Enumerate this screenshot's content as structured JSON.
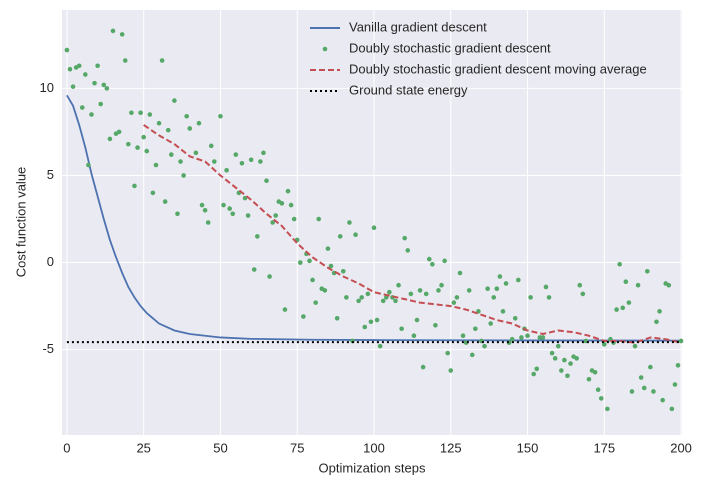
{
  "chart_data": {
    "type": "line",
    "xlabel": "Optimization steps",
    "ylabel": "Cost function value",
    "xlim": [
      -1.6,
      200.3
    ],
    "ylim": [
      -9.9,
      14.5
    ],
    "xticks": [
      0,
      25,
      50,
      75,
      100,
      125,
      150,
      175,
      200
    ],
    "yticks": [
      -5,
      0,
      5,
      10
    ],
    "grid": true,
    "legend": "upper right",
    "series": [
      {
        "name": "Vanilla gradient descent",
        "color": "#4c72b0",
        "style": "solid",
        "kind": "line",
        "x": [
          0,
          2,
          4,
          6,
          8,
          10,
          12,
          14,
          16,
          18,
          20,
          22,
          24,
          26,
          28,
          30,
          35,
          40,
          50,
          60,
          80,
          100,
          150,
          200
        ],
        "values": [
          9.6,
          9.0,
          7.9,
          6.6,
          5.1,
          3.8,
          2.5,
          1.3,
          0.3,
          -0.6,
          -1.4,
          -2.0,
          -2.5,
          -2.9,
          -3.2,
          -3.5,
          -3.9,
          -4.1,
          -4.3,
          -4.38,
          -4.43,
          -4.45,
          -4.47,
          -4.48
        ]
      },
      {
        "name": "Doubly stochastic gradient descent",
        "color": "#55a868",
        "kind": "scatter",
        "x": [
          0,
          1,
          2,
          3,
          4,
          5,
          6,
          7,
          8,
          9,
          10,
          11,
          12,
          13,
          14,
          15,
          16,
          17,
          18,
          19,
          20,
          21,
          22,
          23,
          24,
          25,
          26,
          27,
          28,
          29,
          30,
          31,
          32,
          33,
          34,
          35,
          36,
          37,
          38,
          39,
          40,
          42,
          43,
          44,
          45,
          46,
          47,
          48,
          50,
          51,
          52,
          53,
          54,
          55,
          56,
          57,
          58,
          59,
          60,
          61,
          62,
          63,
          64,
          65,
          66,
          67,
          68,
          69,
          70,
          71,
          72,
          73,
          74,
          75,
          76,
          77,
          78,
          79,
          80,
          81,
          82,
          83,
          84,
          85,
          86,
          87,
          88,
          89,
          90,
          91,
          92,
          93,
          94,
          95,
          96,
          97,
          98,
          99,
          100,
          101,
          102,
          103,
          104,
          105,
          106,
          107,
          108,
          109,
          110,
          111,
          112,
          113,
          114,
          115,
          116,
          117,
          118,
          119,
          120,
          121,
          122,
          123,
          124,
          125,
          126,
          127,
          128,
          129,
          130,
          131,
          132,
          133,
          134,
          135,
          136,
          137,
          138,
          139,
          140,
          141,
          142,
          143,
          144,
          145,
          146,
          147,
          148,
          149,
          150,
          151,
          152,
          153,
          154,
          155,
          156,
          157,
          158,
          159,
          160,
          161,
          162,
          163,
          164,
          165,
          166,
          167,
          168,
          169,
          170,
          171,
          172,
          173,
          174,
          175,
          176,
          177,
          178,
          179,
          180,
          181,
          182,
          183,
          184,
          185,
          186,
          187,
          188,
          189,
          190,
          191,
          192,
          193,
          194,
          195,
          196,
          197,
          198,
          199,
          200
        ],
        "values": [
          12.2,
          11.1,
          10.1,
          11.2,
          11.3,
          8.9,
          10.8,
          5.6,
          8.5,
          10.3,
          11.3,
          9.1,
          10.2,
          10.0,
          7.1,
          13.3,
          7.4,
          7.5,
          13.1,
          11.6,
          6.8,
          8.6,
          4.4,
          6.6,
          8.6,
          7.2,
          6.4,
          8.5,
          4.0,
          5.6,
          8.0,
          11.6,
          3.5,
          7.6,
          6.2,
          9.3,
          2.8,
          5.8,
          5.0,
          8.4,
          7.7,
          6.3,
          8.0,
          3.3,
          3.0,
          2.3,
          6.7,
          5.8,
          8.4,
          3.3,
          5.3,
          3.1,
          2.8,
          6.2,
          4.0,
          5.7,
          3.7,
          2.7,
          5.9,
          -0.4,
          1.5,
          5.8,
          6.3,
          4.7,
          -0.8,
          2.3,
          2.7,
          3.5,
          3.4,
          -2.7,
          4.1,
          3.3,
          2.5,
          1.3,
          0.0,
          -3.1,
          0.5,
          0.1,
          -1.0,
          -2.3,
          2.5,
          -1.5,
          -1.6,
          0.8,
          -0.2,
          -0.6,
          -3.2,
          1.5,
          -0.5,
          -2.0,
          2.3,
          -4.5,
          1.6,
          -2.2,
          -2.0,
          -3.7,
          -1.8,
          -3.4,
          2.0,
          -3.3,
          -4.8,
          -2.2,
          -2.0,
          -1.7,
          -2.0,
          -2.2,
          -1.3,
          -3.8,
          1.4,
          0.7,
          -1.8,
          -4.2,
          -3.3,
          -1.6,
          -6.0,
          -1.8,
          0.2,
          -0.1,
          -3.6,
          -1.6,
          -1.3,
          0.1,
          -5.2,
          -6.2,
          -2.3,
          -2.0,
          -0.6,
          -4.2,
          -4.6,
          -1.6,
          -5.3,
          -3.8,
          -2.8,
          -4.5,
          -4.8,
          -1.5,
          -3.5,
          -2.0,
          -1.5,
          -0.8,
          -2.8,
          -1.2,
          -4.6,
          -4.4,
          -3.2,
          -1.0,
          -4.3,
          -3.8,
          -4.2,
          -2.0,
          -6.4,
          -6.1,
          -4.3,
          -4.3,
          -1.4,
          -2.0,
          -5.2,
          -5.5,
          -4.8,
          -6.2,
          -5.6,
          -6.5,
          -5.8,
          -5.4,
          -5.5,
          -1.3,
          -1.8,
          -4.5,
          -6.7,
          -6.2,
          -6.3,
          -7.3,
          -7.8,
          -4.7,
          -8.4,
          -4.4,
          -4.6,
          -2.7,
          -0.1,
          -2.6,
          -1.1,
          -2.3,
          -7.4,
          -4.8,
          -1.3,
          -6.6,
          -7.2,
          -0.5,
          -6.0,
          -7.4,
          -3.4,
          -2.8,
          -7.9,
          -1.2,
          -1.3,
          -8.4,
          -7.0,
          -5.9,
          -4.5
        ]
      },
      {
        "name": "Doubly stochastic gradient descent moving average",
        "color": "#c44e52",
        "style": "dashed",
        "kind": "line",
        "x": [
          25,
          30,
          35,
          40,
          45,
          50,
          55,
          60,
          65,
          70,
          75,
          80,
          85,
          90,
          95,
          100,
          105,
          110,
          115,
          120,
          125,
          130,
          135,
          140,
          145,
          150,
          155,
          160,
          165,
          170,
          175,
          180,
          185,
          190,
          195,
          200
        ],
        "values": [
          7.9,
          7.3,
          6.8,
          6.1,
          5.8,
          5.0,
          4.3,
          3.6,
          2.8,
          2.1,
          1.1,
          0.3,
          -0.3,
          -0.8,
          -1.2,
          -1.7,
          -1.9,
          -2.1,
          -2.3,
          -2.4,
          -2.5,
          -2.7,
          -3.0,
          -3.3,
          -3.5,
          -3.9,
          -4.1,
          -3.9,
          -4.0,
          -4.2,
          -4.5,
          -4.5,
          -4.6,
          -4.3,
          -4.4,
          -4.6
        ]
      },
      {
        "name": "Ground state energy",
        "color": "#000000",
        "style": "dotted",
        "kind": "line",
        "x": [
          0,
          200
        ],
        "values": [
          -4.57,
          -4.57
        ]
      }
    ]
  }
}
